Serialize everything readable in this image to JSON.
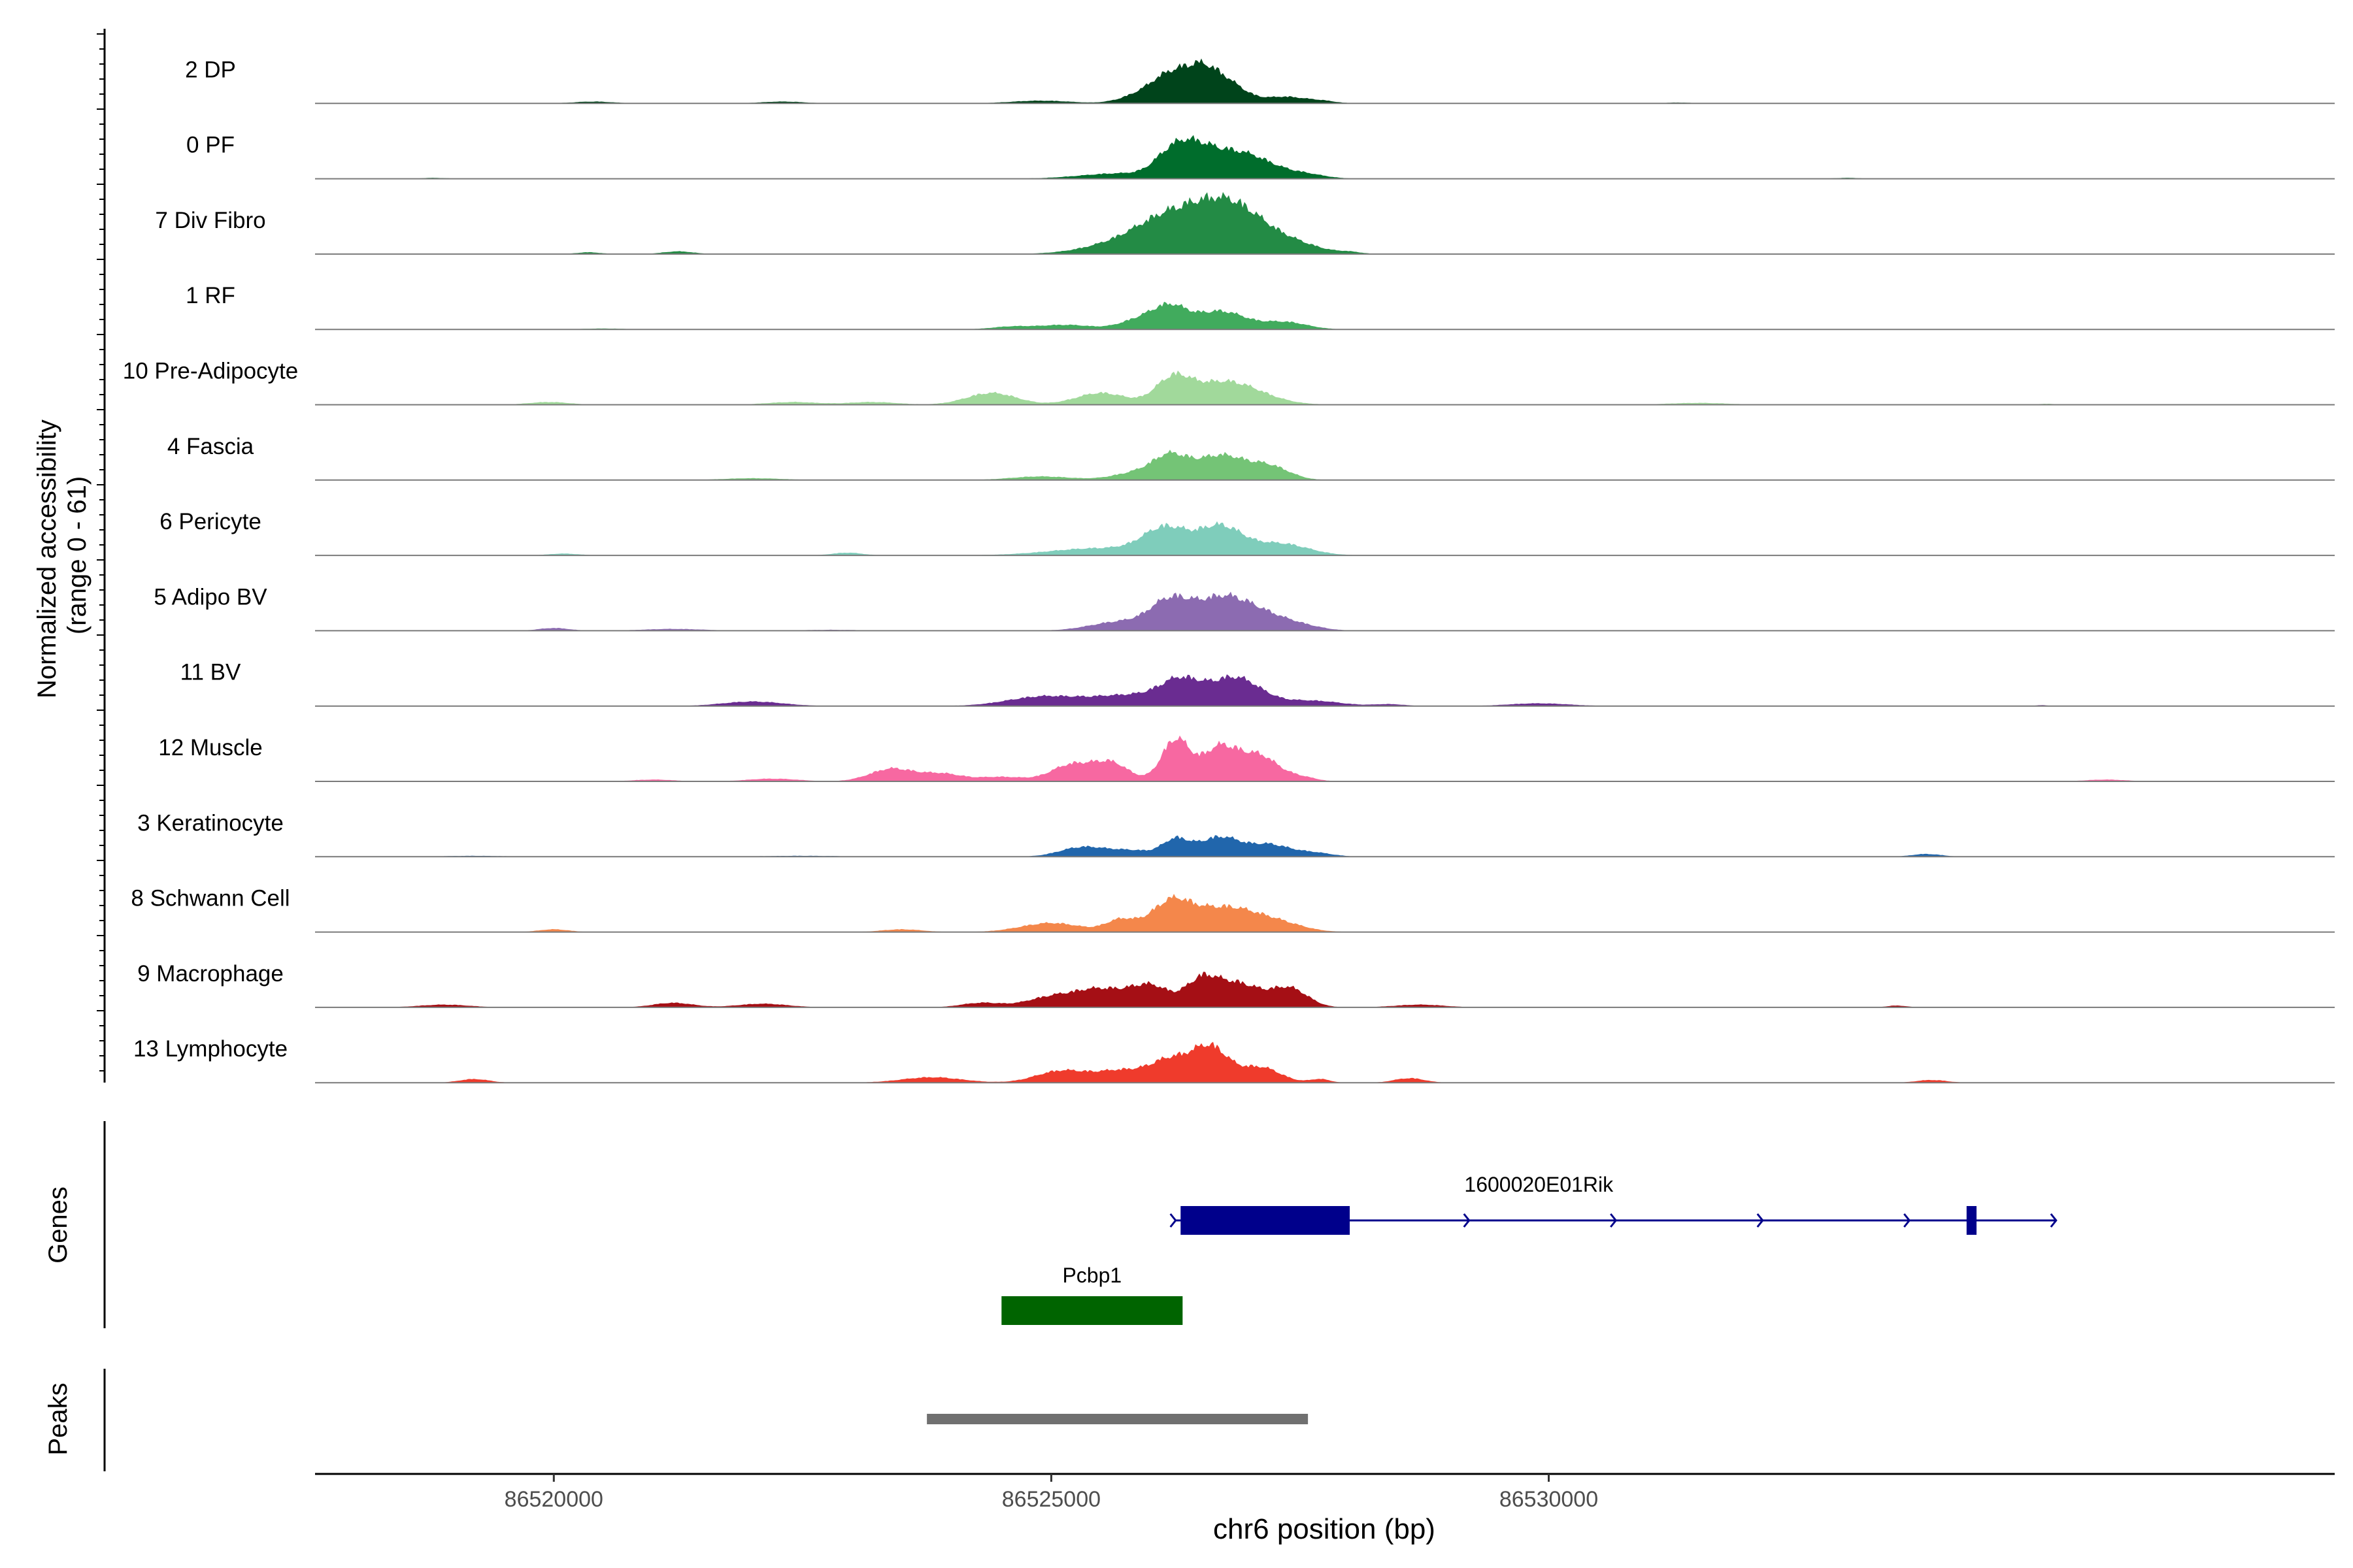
{
  "chart_data": {
    "type": "area",
    "genome_axis": {
      "label": "chr6 position (bp)",
      "range": [
        86517600,
        86537900
      ],
      "ticks": [
        86520000,
        86525000,
        86530000
      ],
      "tick_labels": [
        "86520000",
        "86525000",
        "86530000"
      ]
    },
    "coverage_panel": {
      "ylabel": "Normalized accessibility\n(range 0 - 61)",
      "y_range": [
        0,
        61
      ],
      "tracks": [
        {
          "name": "2 DP",
          "color": "#00441b",
          "peaks": [
            [
              86526200,
              28,
              180
            ],
            [
              86526700,
              27,
              220
            ],
            [
              86526480,
              20,
              150
            ],
            [
              86525900,
              9,
              200
            ],
            [
              86527350,
              7,
              180
            ],
            [
              86527700,
              3,
              150
            ],
            [
              86524900,
              3,
              300
            ],
            [
              86520400,
              2,
              200
            ],
            [
              86522300,
              2,
              220
            ],
            [
              86531300,
              1,
              120
            ]
          ]
        },
        {
          "name": "0 PF",
          "color": "#006d2c",
          "peaks": [
            [
              86526220,
              28,
              170
            ],
            [
              86526680,
              25,
              230
            ],
            [
              86527050,
              18,
              220
            ],
            [
              86526450,
              15,
              150
            ],
            [
              86525700,
              6,
              400
            ],
            [
              86527500,
              6,
              220
            ],
            [
              86518800,
              1,
              120
            ],
            [
              86533000,
              1,
              120
            ]
          ]
        },
        {
          "name": "7 Div Fibro",
          "color": "#238b45",
          "peaks": [
            [
              86526180,
              28,
              300
            ],
            [
              86526660,
              40,
              300
            ],
            [
              86527000,
              26,
              300
            ],
            [
              86525800,
              14,
              400
            ],
            [
              86527500,
              8,
              250
            ],
            [
              86520350,
              2,
              120
            ],
            [
              86521250,
              3,
              150
            ],
            [
              86528000,
              2,
              120
            ]
          ]
        },
        {
          "name": "1 RF",
          "color": "#41ab5d",
          "peaks": [
            [
              86526200,
              22,
              170
            ],
            [
              86526700,
              20,
              250
            ],
            [
              86525900,
              11,
              200
            ],
            [
              86527350,
              8,
              220
            ],
            [
              86525150,
              5,
              260
            ],
            [
              86524600,
              3,
              200
            ],
            [
              86520500,
              1,
              200
            ]
          ]
        },
        {
          "name": "10 Pre-Adipocyte",
          "color": "#a1d99b",
          "peaks": [
            [
              86526220,
              25,
              170
            ],
            [
              86526750,
              26,
              350
            ],
            [
              86524400,
              13,
              250
            ],
            [
              86525500,
              13,
              250
            ],
            [
              86523200,
              3,
              250
            ],
            [
              86522400,
              3,
              250
            ],
            [
              86519950,
              3,
              200
            ],
            [
              86531500,
              2,
              300
            ],
            [
              86535000,
              1,
              100
            ]
          ]
        },
        {
          "name": "4 Fascia",
          "color": "#74c476",
          "peaks": [
            [
              86526200,
              22,
              170
            ],
            [
              86526700,
              27,
              250
            ],
            [
              86527200,
              14,
              200
            ],
            [
              86525900,
              9,
              250
            ],
            [
              86524900,
              4,
              300
            ],
            [
              86522000,
              2,
              300
            ]
          ]
        },
        {
          "name": "6 Pericyte",
          "color": "#7fcdbb",
          "peaks": [
            [
              86526150,
              28,
              220
            ],
            [
              86526700,
              31,
              220
            ],
            [
              86527300,
              13,
              280
            ],
            [
              86525500,
              8,
              500
            ],
            [
              86522950,
              3,
              150
            ],
            [
              86520100,
              2,
              150
            ]
          ]
        },
        {
          "name": "5 Adipo BV",
          "color": "#8c6bb1",
          "peaks": [
            [
              86526200,
              31,
              200
            ],
            [
              86526700,
              33,
              250
            ],
            [
              86527100,
              16,
              250
            ],
            [
              86525700,
              10,
              300
            ],
            [
              86527500,
              5,
              220
            ],
            [
              86520000,
              3,
              150
            ],
            [
              86521200,
              2,
              300
            ],
            [
              86522800,
              1,
              300
            ]
          ]
        },
        {
          "name": "11 BV",
          "color": "#6a2c91",
          "peaks": [
            [
              86526300,
              24,
              200
            ],
            [
              86526850,
              31,
              250
            ],
            [
              86525800,
              12,
              400
            ],
            [
              86524900,
              10,
              350
            ],
            [
              86527600,
              6,
              300
            ],
            [
              86522000,
              5,
              300
            ],
            [
              86529900,
              3,
              300
            ],
            [
              86528400,
              2,
              150
            ],
            [
              86534950,
              1,
              60
            ]
          ]
        },
        {
          "name": "12 Muscle",
          "color": "#f768a1",
          "peaks": [
            [
              86526250,
              46,
              140
            ],
            [
              86526700,
              38,
              180
            ],
            [
              86527100,
              27,
              180
            ],
            [
              86525600,
              20,
              180
            ],
            [
              86525200,
              18,
              200
            ],
            [
              86523400,
              14,
              220
            ],
            [
              86523900,
              8,
              200
            ],
            [
              86524500,
              5,
              250
            ],
            [
              86527500,
              5,
              150
            ],
            [
              86521000,
              2,
              200
            ],
            [
              86522200,
              3,
              250
            ],
            [
              86535600,
              2,
              200
            ]
          ]
        },
        {
          "name": "3 Keratinocyte",
          "color": "#2166ac",
          "peaks": [
            [
              86526250,
              17,
              130
            ],
            [
              86526700,
              22,
              220
            ],
            [
              86527200,
              12,
              180
            ],
            [
              86525300,
              10,
              220
            ],
            [
              86525800,
              7,
              250
            ],
            [
              86527600,
              5,
              200
            ],
            [
              86533800,
              3,
              150
            ],
            [
              86522500,
              1,
              400
            ],
            [
              86519200,
              1,
              300
            ]
          ]
        },
        {
          "name": "8 Schwann Cell",
          "color": "#f4874b",
          "peaks": [
            [
              86526200,
              31,
              200
            ],
            [
              86526750,
              27,
              320
            ],
            [
              86525700,
              13,
              150
            ],
            [
              86525000,
              10,
              300
            ],
            [
              86527300,
              8,
              250
            ],
            [
              86520000,
              3,
              150
            ],
            [
              86523500,
              3,
              200
            ]
          ]
        },
        {
          "name": "9 Macrophage",
          "color": "#a50f15",
          "peaks": [
            [
              86526000,
              23,
              200
            ],
            [
              86526500,
              24,
              150
            ],
            [
              86526850,
              27,
              250
            ],
            [
              86527400,
              20,
              180
            ],
            [
              86525500,
              19,
              250
            ],
            [
              86525000,
              11,
              250
            ],
            [
              86524300,
              5,
              200
            ],
            [
              86521200,
              5,
              200
            ],
            [
              86522100,
              4,
              250
            ],
            [
              86528700,
              3,
              250
            ],
            [
              86518900,
              3,
              250
            ],
            [
              86533500,
              2,
              100
            ]
          ]
        },
        {
          "name": "13 Lymphocyte",
          "color": "#ef3b2c",
          "peaks": [
            [
              86526600,
              38,
              180
            ],
            [
              86526200,
              24,
              200
            ],
            [
              86527100,
              17,
              200
            ],
            [
              86525700,
              13,
              250
            ],
            [
              86525100,
              13,
              250
            ],
            [
              86523800,
              6,
              300
            ],
            [
              86527700,
              4,
              100
            ],
            [
              86528600,
              5,
              150
            ],
            [
              86519200,
              4,
              150
            ],
            [
              86533850,
              3,
              150
            ]
          ]
        }
      ]
    },
    "genes_panel": {
      "ylabel": "Genes",
      "genes": [
        {
          "name": "1600020E01Rik",
          "color": "#00008b",
          "start": 86526250,
          "end": 86535100,
          "exons": [
            [
              86526300,
              86528000
            ],
            [
              86534200,
              86534300
            ]
          ],
          "strand": "+"
        },
        {
          "name": "Pcbp1",
          "color": "#006400",
          "start": 86524500,
          "end": 86526320,
          "exons": [
            [
              86524500,
              86526320
            ]
          ],
          "strand": "+"
        }
      ]
    },
    "peaks_panel": {
      "ylabel": "Peaks",
      "peaks": [
        [
          86523750,
          86527580
        ]
      ],
      "color": "#707070"
    }
  }
}
